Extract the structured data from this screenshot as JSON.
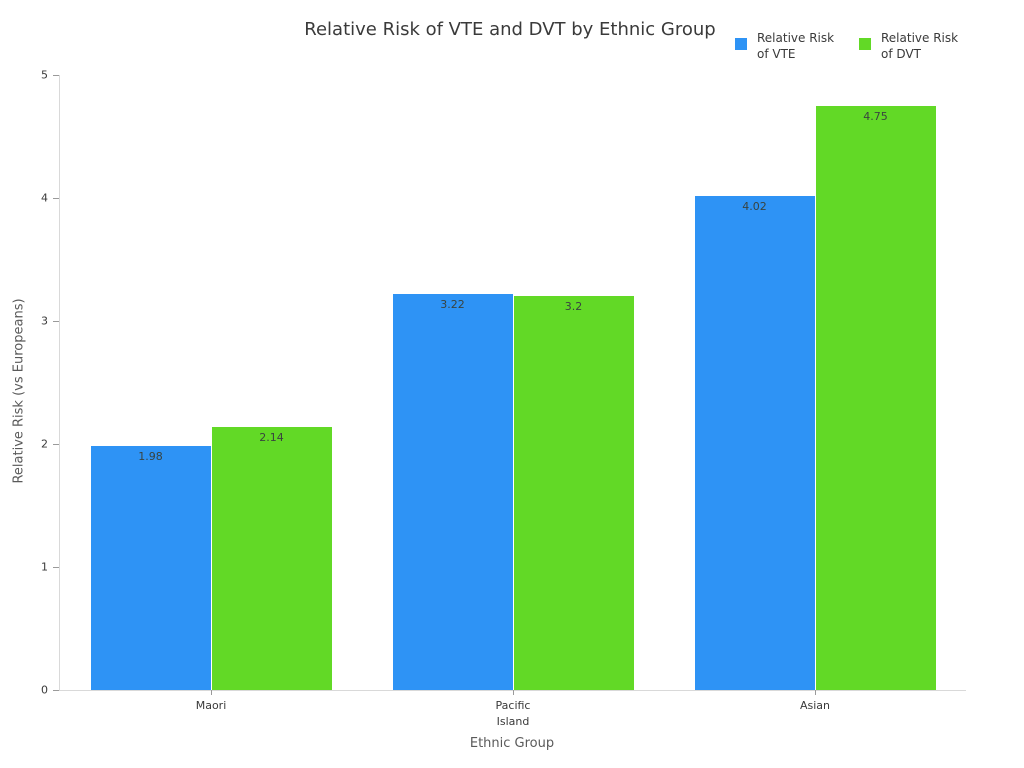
{
  "chart_data": {
    "type": "bar",
    "title": "Relative Risk of VTE and DVT by Ethnic Group",
    "xlabel": "Ethnic Group",
    "ylabel": "Relative Risk (vs Europeans)",
    "categories": [
      "Maori",
      "Pacific Island",
      "Asian"
    ],
    "series": [
      {
        "name": "Relative Risk of VTE",
        "color": "#2E93F5",
        "values": [
          1.98,
          3.22,
          4.02
        ]
      },
      {
        "name": "Relative Risk of DVT",
        "color": "#62D926",
        "values": [
          2.14,
          3.2,
          4.75
        ]
      }
    ],
    "bar_value_labels": [
      [
        "1.98",
        "3.22",
        "4.02"
      ],
      [
        "2.14",
        "3.2",
        "4.75"
      ]
    ],
    "ylim": [
      0,
      5
    ],
    "yticks": [
      "0",
      "1",
      "2",
      "3",
      "4",
      "5"
    ],
    "grid": false,
    "legend_position": "top-right",
    "colors": {
      "vte_bar": "#2E93F5",
      "dvt_bar": "#62D926",
      "axis_line": "#d9d9d9",
      "tick": "#9a9a9a",
      "title_text": "#3a3a3a",
      "bar_label_text": "#39433f"
    }
  }
}
